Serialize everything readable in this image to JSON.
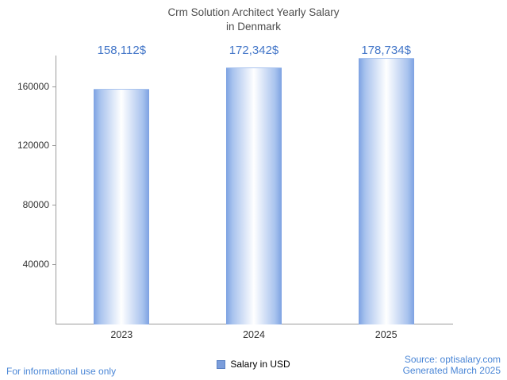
{
  "title": {
    "line1": "Crm Solution Architect Yearly Salary",
    "line2": "in Denmark"
  },
  "chart_data": {
    "type": "bar",
    "title": "Crm Solution Architect Yearly Salary in Denmark",
    "categories": [
      "2023",
      "2024",
      "2025"
    ],
    "values": [
      158112,
      172342,
      178734
    ],
    "value_labels": [
      "158,112$",
      "172,342$",
      "178,734$"
    ],
    "series_name": "Salary in USD",
    "xlabel": "",
    "ylabel": "",
    "yticks": [
      40000,
      80000,
      120000,
      160000
    ],
    "ylim": [
      0,
      180600
    ],
    "grid": false,
    "legend_position": "bottom",
    "bar_edge_color": "#7da2e2",
    "bar_center_color": "#ffffff"
  },
  "legend": {
    "label": "Salary in USD",
    "swatch_color": "#7b9ddb"
  },
  "footer": {
    "left": "For informational use only",
    "source": "Source: optisalary.com",
    "generated": "Generated March 2025"
  },
  "colors": {
    "accent_text": "#4376c8",
    "footer_text": "#4a86d6",
    "title_text": "#4d4d4d",
    "axis": "#9a9a9a",
    "tick_text": "#333333"
  }
}
